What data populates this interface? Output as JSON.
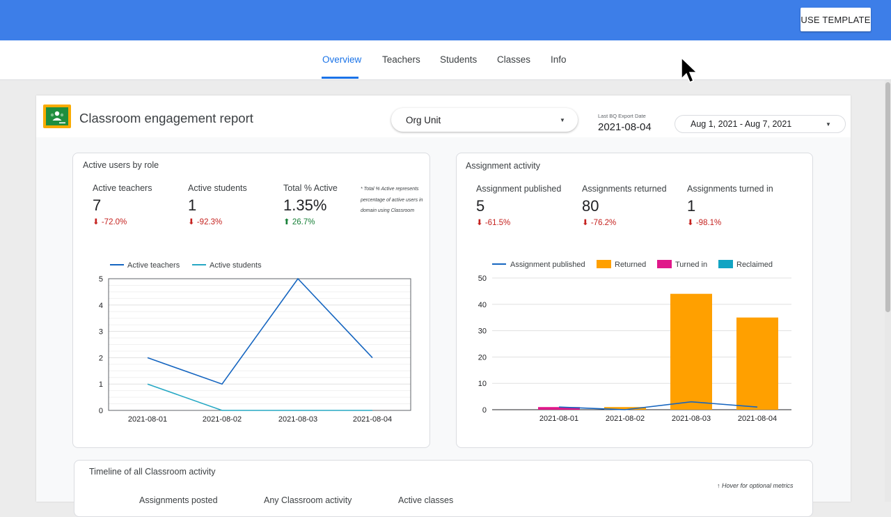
{
  "header": {
    "use_template": "USE TEMPLATE"
  },
  "tabs": [
    {
      "label": "Overview",
      "active": true
    },
    {
      "label": "Teachers"
    },
    {
      "label": "Students"
    },
    {
      "label": "Classes"
    },
    {
      "label": "Info"
    }
  ],
  "report": {
    "title": "Classroom engagement report",
    "org_unit": "Org Unit",
    "export_label": "Last BQ Export Date",
    "export_date": "2021-08-04",
    "date_range": "Aug 1, 2021 - Aug 7, 2021"
  },
  "active_users": {
    "title": "Active users by role",
    "metrics": [
      {
        "label": "Active teachers",
        "value": "7",
        "delta": "-72.0%",
        "direction": "down"
      },
      {
        "label": "Active students",
        "value": "1",
        "delta": "-92.3%",
        "direction": "down"
      },
      {
        "label": "Total % Active",
        "value": "1.35%",
        "delta": "26.7%",
        "direction": "up"
      }
    ],
    "footnote": "* Total % Active represents percentage of active users in domain using Classroom"
  },
  "assignment_activity": {
    "title": "Assignment activity",
    "metrics": [
      {
        "label": "Assignment published",
        "value": "5",
        "delta": "-61.5%",
        "direction": "down"
      },
      {
        "label": "Assignments returned",
        "value": "80",
        "delta": "-76.2%",
        "direction": "down"
      },
      {
        "label": "Assignments turned in",
        "value": "1",
        "delta": "-98.1%",
        "direction": "down"
      }
    ]
  },
  "timeline": {
    "title": "Timeline of all Classroom activity",
    "hover_note": "Hover for optional metrics",
    "metric_labels": [
      "Assignments posted",
      "Any Classroom activity",
      "Active classes"
    ]
  },
  "colors": {
    "accent": "#3d7ee8",
    "tab_active": "#1a73e8",
    "negative": "#c5221f",
    "positive": "#188038",
    "teachers_line": "#1565c0",
    "students_line": "#26a8c4",
    "returned": "#ffa000",
    "turned_in": "#e0188a",
    "reclaimed": "#12a4c3"
  },
  "chart_data": [
    {
      "type": "line",
      "categories": [
        "2021-08-01",
        "2021-08-02",
        "2021-08-03",
        "2021-08-04"
      ],
      "series": [
        {
          "name": "Active teachers",
          "values": [
            2,
            1,
            5,
            2
          ],
          "color": "#1565c0"
        },
        {
          "name": "Active students",
          "values": [
            1,
            0,
            0,
            0
          ],
          "color": "#26a8c4"
        }
      ],
      "ylim": [
        0,
        5
      ],
      "yticks": [
        0,
        1,
        2,
        3,
        4,
        5
      ],
      "legend": "top",
      "grid": true
    },
    {
      "type": "bar",
      "categories": [
        "2021-08-01",
        "2021-08-02",
        "2021-08-03",
        "2021-08-04"
      ],
      "series": [
        {
          "name": "Assignment published",
          "kind": "line",
          "values": [
            1,
            0,
            3,
            1
          ],
          "color": "#1565c0"
        },
        {
          "name": "Returned",
          "kind": "bar",
          "values": [
            0,
            1,
            44,
            35
          ],
          "color": "#ffa000"
        },
        {
          "name": "Turned in",
          "kind": "bar",
          "values": [
            1,
            0,
            0,
            0
          ],
          "color": "#e0188a"
        },
        {
          "name": "Reclaimed",
          "kind": "bar",
          "values": [
            0,
            0,
            0,
            0
          ],
          "color": "#12a4c3"
        }
      ],
      "ylim": [
        0,
        50
      ],
      "yticks": [
        0,
        10,
        20,
        30,
        40,
        50
      ],
      "legend": "top",
      "grid": true
    }
  ]
}
